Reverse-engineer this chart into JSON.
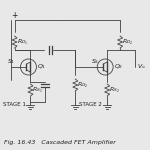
{
  "title": "Fig. 16.43   Cascaded FET Amplifier",
  "bg_color": "#e8e8e8",
  "line_color": "#404040",
  "text_color": "#202020",
  "fig_width": 1.5,
  "fig_height": 1.5,
  "dpi": 100
}
